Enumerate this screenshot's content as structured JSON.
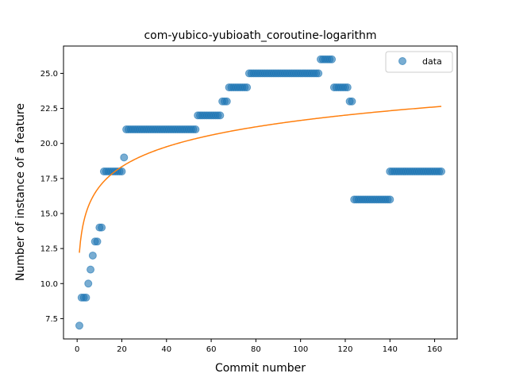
{
  "chart_data": {
    "type": "scatter",
    "title": "com-yubico-yubioath_coroutine-logarithm",
    "xlabel": "Commit number",
    "ylabel": "Number of instance of a feature",
    "xlim": [
      -6.1,
      170.1
    ],
    "ylim": [
      6.05,
      26.95
    ],
    "xticks": [
      0,
      20,
      40,
      60,
      80,
      100,
      120,
      140,
      160
    ],
    "yticks": [
      7.5,
      10.0,
      12.5,
      15.0,
      17.5,
      20.0,
      22.5,
      25.0
    ],
    "ytick_labels": [
      "7.5",
      "10.0",
      "12.5",
      "15.0",
      "17.5",
      "20.0",
      "22.5",
      "25.0"
    ],
    "xtick_labels": [
      "0",
      "20",
      "40",
      "60",
      "80",
      "100",
      "120",
      "140",
      "160"
    ],
    "legend": {
      "placement": "top-right",
      "entries": [
        "data"
      ]
    },
    "colors": {
      "data": "#1f77b4",
      "fit": "#ff7f0e"
    },
    "series": [
      {
        "name": "data",
        "kind": "scatter",
        "segments": [
          {
            "x_start": 1,
            "x_end": 1,
            "y": 7
          },
          {
            "x_start": 2,
            "x_end": 4,
            "y": 9
          },
          {
            "x_start": 5,
            "x_end": 5,
            "y": 10
          },
          {
            "x_start": 6,
            "x_end": 6,
            "y": 11
          },
          {
            "x_start": 7,
            "x_end": 7,
            "y": 12
          },
          {
            "x_start": 8,
            "x_end": 9,
            "y": 13
          },
          {
            "x_start": 10,
            "x_end": 11,
            "y": 14
          },
          {
            "x_start": 12,
            "x_end": 20,
            "y": 18
          },
          {
            "x_start": 21,
            "x_end": 21,
            "y": 19
          },
          {
            "x_start": 22,
            "x_end": 53,
            "y": 21
          },
          {
            "x_start": 54,
            "x_end": 64,
            "y": 22
          },
          {
            "x_start": 65,
            "x_end": 67,
            "y": 23
          },
          {
            "x_start": 68,
            "x_end": 76,
            "y": 24
          },
          {
            "x_start": 77,
            "x_end": 108,
            "y": 25
          },
          {
            "x_start": 109,
            "x_end": 114,
            "y": 26
          },
          {
            "x_start": 115,
            "x_end": 121,
            "y": 24
          },
          {
            "x_start": 122,
            "x_end": 123,
            "y": 23
          },
          {
            "x_start": 124,
            "x_end": 140,
            "y": 16
          },
          {
            "x_start": 140,
            "x_end": 163,
            "y": 18
          }
        ]
      },
      {
        "kind": "line",
        "model": "logarithmic",
        "a": 12.2,
        "b": 2.05,
        "x_range": [
          1,
          163
        ]
      }
    ]
  }
}
